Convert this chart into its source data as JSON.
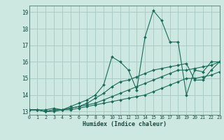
{
  "xlabel": "Humidex (Indice chaleur)",
  "xlim": [
    0,
    23
  ],
  "ylim": [
    12.8,
    19.4
  ],
  "yticks": [
    13,
    14,
    15,
    16,
    17,
    18,
    19
  ],
  "xticks": [
    0,
    1,
    2,
    3,
    4,
    5,
    6,
    7,
    8,
    9,
    10,
    11,
    12,
    13,
    14,
    15,
    16,
    17,
    18,
    19,
    20,
    21,
    22,
    23
  ],
  "bg_color": "#cce8e0",
  "grid_color": "#aaccc4",
  "line_color": "#1a6b5a",
  "lines": [
    [
      0,
      13.1,
      1,
      13.1,
      2,
      13.1,
      3,
      13.2,
      4,
      13.1,
      5,
      13.3,
      6,
      13.5,
      7,
      13.7,
      8,
      14.0,
      9,
      14.6,
      10,
      16.3,
      11,
      16.0,
      12,
      15.5,
      13,
      14.3,
      14,
      17.5,
      15,
      19.1,
      16,
      18.5,
      17,
      17.2,
      18,
      17.2,
      19,
      14.0,
      20,
      15.5,
      21,
      15.4,
      22,
      16.0,
      23,
      16.0
    ],
    [
      0,
      13.1,
      1,
      13.1,
      2,
      13.0,
      3,
      13.1,
      4,
      13.1,
      5,
      13.2,
      6,
      13.3,
      7,
      13.5,
      8,
      13.8,
      9,
      14.1,
      10,
      14.5,
      11,
      14.8,
      12,
      14.9,
      13,
      15.1,
      14,
      15.3,
      15,
      15.5,
      16,
      15.6,
      17,
      15.7,
      18,
      15.8,
      19,
      15.9,
      20,
      14.9,
      21,
      14.9,
      22,
      15.5,
      23,
      16.0
    ],
    [
      0,
      13.1,
      1,
      13.1,
      2,
      13.0,
      3,
      13.1,
      4,
      13.1,
      5,
      13.2,
      6,
      13.3,
      7,
      13.4,
      8,
      13.5,
      9,
      13.7,
      10,
      13.9,
      11,
      14.1,
      12,
      14.3,
      13,
      14.5,
      14,
      14.7,
      15,
      14.9,
      16,
      15.1,
      17,
      15.3,
      18,
      15.5,
      19,
      15.5,
      20,
      15.6,
      21,
      15.7,
      22,
      15.8,
      23,
      16.0
    ],
    [
      0,
      13.1,
      1,
      13.1,
      2,
      13.0,
      3,
      13.0,
      4,
      13.1,
      5,
      13.1,
      6,
      13.2,
      7,
      13.3,
      8,
      13.4,
      9,
      13.5,
      10,
      13.6,
      11,
      13.7,
      12,
      13.8,
      13,
      13.9,
      14,
      14.0,
      15,
      14.2,
      16,
      14.4,
      17,
      14.6,
      18,
      14.8,
      19,
      15.0,
      20,
      15.0,
      21,
      15.1,
      22,
      15.2,
      23,
      15.4
    ]
  ]
}
